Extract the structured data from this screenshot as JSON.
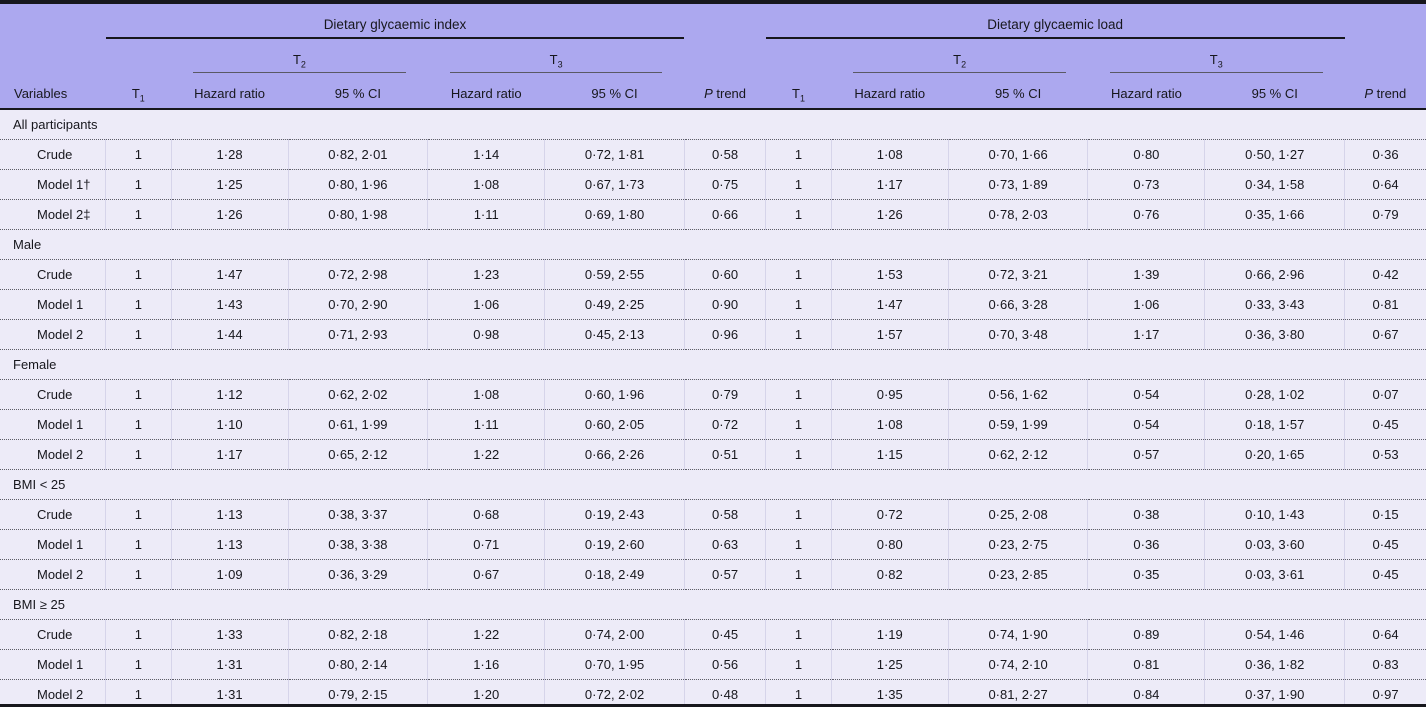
{
  "table": {
    "groups": [
      {
        "title": "Dietary glycaemic index"
      },
      {
        "title": "Dietary glycaemic load"
      }
    ],
    "tertiles": {
      "t1": {
        "base": "T",
        "sub": "1"
      },
      "t2": {
        "base": "T",
        "sub": "2"
      },
      "t3": {
        "base": "T",
        "sub": "3"
      }
    },
    "headers": {
      "variables": "Variables",
      "hazard_ratio": "Hazard ratio",
      "ci": "95 % CI",
      "p_italic": "P",
      "p_rest": " trend"
    },
    "colors": {
      "header_band": "#aca8ef",
      "body_background": "#edebf8",
      "rule_black": "#17171d"
    },
    "sections": [
      {
        "label": "All participants",
        "rows": [
          {
            "label": "Crude",
            "gi": {
              "t1": "1",
              "t2_hr": "1·28",
              "t2_ci": "0·82, 2·01",
              "t3_hr": "1·14",
              "t3_ci": "0·72, 1·81",
              "p": "0·58"
            },
            "gl": {
              "t1": "1",
              "t2_hr": "1·08",
              "t2_ci": "0·70, 1·66",
              "t3_hr": "0·80",
              "t3_ci": "0·50, 1·27",
              "p": "0·36"
            }
          },
          {
            "label": "Model 1†",
            "gi": {
              "t1": "1",
              "t2_hr": "1·25",
              "t2_ci": "0·80, 1·96",
              "t3_hr": "1·08",
              "t3_ci": "0·67, 1·73",
              "p": "0·75"
            },
            "gl": {
              "t1": "1",
              "t2_hr": "1·17",
              "t2_ci": "0·73, 1·89",
              "t3_hr": "0·73",
              "t3_ci": "0·34, 1·58",
              "p": "0·64"
            }
          },
          {
            "label": "Model 2‡",
            "gi": {
              "t1": "1",
              "t2_hr": "1·26",
              "t2_ci": "0·80, 1·98",
              "t3_hr": "1·11",
              "t3_ci": "0·69, 1·80",
              "p": "0·66"
            },
            "gl": {
              "t1": "1",
              "t2_hr": "1·26",
              "t2_ci": "0·78, 2·03",
              "t3_hr": "0·76",
              "t3_ci": "0·35, 1·66",
              "p": "0·79"
            }
          }
        ]
      },
      {
        "label": "Male",
        "rows": [
          {
            "label": "Crude",
            "gi": {
              "t1": "1",
              "t2_hr": "1·47",
              "t2_ci": "0·72, 2·98",
              "t3_hr": "1·23",
              "t3_ci": "0·59, 2·55",
              "p": "0·60"
            },
            "gl": {
              "t1": "1",
              "t2_hr": "1·53",
              "t2_ci": "0·72, 3·21",
              "t3_hr": "1·39",
              "t3_ci": "0·66, 2·96",
              "p": "0·42"
            }
          },
          {
            "label": "Model 1",
            "gi": {
              "t1": "1",
              "t2_hr": "1·43",
              "t2_ci": "0·70, 2·90",
              "t3_hr": "1·06",
              "t3_ci": "0·49, 2·25",
              "p": "0·90"
            },
            "gl": {
              "t1": "1",
              "t2_hr": "1·47",
              "t2_ci": "0·66, 3·28",
              "t3_hr": "1·06",
              "t3_ci": "0·33, 3·43",
              "p": "0·81"
            }
          },
          {
            "label": "Model 2",
            "gi": {
              "t1": "1",
              "t2_hr": "1·44",
              "t2_ci": "0·71, 2·93",
              "t3_hr": "0·98",
              "t3_ci": "0·45, 2·13",
              "p": "0·96"
            },
            "gl": {
              "t1": "1",
              "t2_hr": "1·57",
              "t2_ci": "0·70, 3·48",
              "t3_hr": "1·17",
              "t3_ci": "0·36, 3·80",
              "p": "0·67"
            }
          }
        ]
      },
      {
        "label": "Female",
        "rows": [
          {
            "label": "Crude",
            "gi": {
              "t1": "1",
              "t2_hr": "1·12",
              "t2_ci": "0·62, 2·02",
              "t3_hr": "1·08",
              "t3_ci": "0·60, 1·96",
              "p": "0·79"
            },
            "gl": {
              "t1": "1",
              "t2_hr": "0·95",
              "t2_ci": "0·56, 1·62",
              "t3_hr": "0·54",
              "t3_ci": "0·28, 1·02",
              "p": "0·07"
            }
          },
          {
            "label": "Model 1",
            "gi": {
              "t1": "1",
              "t2_hr": "1·10",
              "t2_ci": "0·61, 1·99",
              "t3_hr": "1·11",
              "t3_ci": "0·60, 2·05",
              "p": "0·72"
            },
            "gl": {
              "t1": "1",
              "t2_hr": "1·08",
              "t2_ci": "0·59, 1·99",
              "t3_hr": "0·54",
              "t3_ci": "0·18, 1·57",
              "p": "0·45"
            }
          },
          {
            "label": "Model 2",
            "gi": {
              "t1": "1",
              "t2_hr": "1·17",
              "t2_ci": "0·65, 2·12",
              "t3_hr": "1·22",
              "t3_ci": "0·66, 2·26",
              "p": "0·51"
            },
            "gl": {
              "t1": "1",
              "t2_hr": "1·15",
              "t2_ci": "0·62, 2·12",
              "t3_hr": "0·57",
              "t3_ci": "0·20, 1·65",
              "p": "0·53"
            }
          }
        ]
      },
      {
        "label": "BMI < 25",
        "rows": [
          {
            "label": "Crude",
            "gi": {
              "t1": "1",
              "t2_hr": "1·13",
              "t2_ci": "0·38, 3·37",
              "t3_hr": "0·68",
              "t3_ci": "0·19, 2·43",
              "p": "0·58"
            },
            "gl": {
              "t1": "1",
              "t2_hr": "0·72",
              "t2_ci": "0·25, 2·08",
              "t3_hr": "0·38",
              "t3_ci": "0·10, 1·43",
              "p": "0·15"
            }
          },
          {
            "label": "Model 1",
            "gi": {
              "t1": "1",
              "t2_hr": "1·13",
              "t2_ci": "0·38, 3·38",
              "t3_hr": "0·71",
              "t3_ci": "0·19, 2·60",
              "p": "0·63"
            },
            "gl": {
              "t1": "1",
              "t2_hr": "0·80",
              "t2_ci": "0·23, 2·75",
              "t3_hr": "0·36",
              "t3_ci": "0·03, 3·60",
              "p": "0·45"
            }
          },
          {
            "label": "Model 2",
            "gi": {
              "t1": "1",
              "t2_hr": "1·09",
              "t2_ci": "0·36, 3·29",
              "t3_hr": "0·67",
              "t3_ci": "0·18, 2·49",
              "p": "0·57"
            },
            "gl": {
              "t1": "1",
              "t2_hr": "0·82",
              "t2_ci": "0·23, 2·85",
              "t3_hr": "0·35",
              "t3_ci": "0·03, 3·61",
              "p": "0·45"
            }
          }
        ]
      },
      {
        "label": "BMI ≥ 25",
        "rows": [
          {
            "label": "Crude",
            "gi": {
              "t1": "1",
              "t2_hr": "1·33",
              "t2_ci": "0·82, 2·18",
              "t3_hr": "1·22",
              "t3_ci": "0·74, 2·00",
              "p": "0·45"
            },
            "gl": {
              "t1": "1",
              "t2_hr": "1·19",
              "t2_ci": "0·74, 1·90",
              "t3_hr": "0·89",
              "t3_ci": "0·54, 1·46",
              "p": "0·64"
            }
          },
          {
            "label": "Model 1",
            "gi": {
              "t1": "1",
              "t2_hr": "1·31",
              "t2_ci": "0·80, 2·14",
              "t3_hr": "1·16",
              "t3_ci": "0·70, 1·95",
              "p": "0·56"
            },
            "gl": {
              "t1": "1",
              "t2_hr": "1·25",
              "t2_ci": "0·74, 2·10",
              "t3_hr": "0·81",
              "t3_ci": "0·36, 1·82",
              "p": "0·83"
            }
          },
          {
            "label": "Model 2",
            "gi": {
              "t1": "1",
              "t2_hr": "1·31",
              "t2_ci": "0·79, 2·15",
              "t3_hr": "1·20",
              "t3_ci": "0·72, 2·02",
              "p": "0·48"
            },
            "gl": {
              "t1": "1",
              "t2_hr": "1·35",
              "t2_ci": "0·81, 2·27",
              "t3_hr": "0·84",
              "t3_ci": "0·37, 1·90",
              "p": "0·97"
            }
          }
        ]
      }
    ]
  }
}
